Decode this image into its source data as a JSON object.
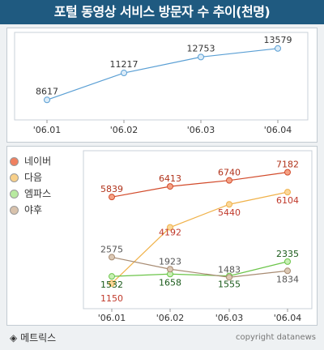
{
  "title": "포털 동영상 서비스 방문자 수 추이(천명)",
  "footer": {
    "source_icon": "◈",
    "source": "메트릭스",
    "copyright": "copyright datanews"
  },
  "colors": {
    "title_bg": "#1f5a80",
    "total_line": "#5a9fd4",
    "naver": "#d24a2a",
    "daum": "#f0b24a",
    "empas": "#6cc54a",
    "yahoo": "#a88c73",
    "naver_label": "#b0321a",
    "daum_label": "#c0392b",
    "empas_label": "#1a5a1a",
    "yahoo_label": "#555555"
  },
  "chart_data": [
    {
      "type": "line",
      "categories": [
        "'06.01",
        "'06.02",
        "'06.03",
        "'06.04"
      ],
      "series": [
        {
          "values": [
            8617,
            11217,
            12753,
            13579
          ]
        }
      ],
      "ylim": [
        7000,
        14500
      ]
    },
    {
      "type": "line",
      "categories": [
        "'06.01",
        "'06.02",
        "'06.03",
        "'06.04"
      ],
      "legend": "left",
      "series": [
        {
          "name": "네이버",
          "values": [
            5839,
            6413,
            6740,
            7182
          ]
        },
        {
          "name": "다음",
          "values": [
            1150,
            4192,
            5440,
            6104
          ]
        },
        {
          "name": "엠파스",
          "values": [
            1532,
            1658,
            1555,
            2335
          ]
        },
        {
          "name": "야후",
          "values": [
            2575,
            1923,
            1483,
            1834
          ]
        }
      ],
      "ylim": [
        0,
        8000
      ]
    }
  ]
}
